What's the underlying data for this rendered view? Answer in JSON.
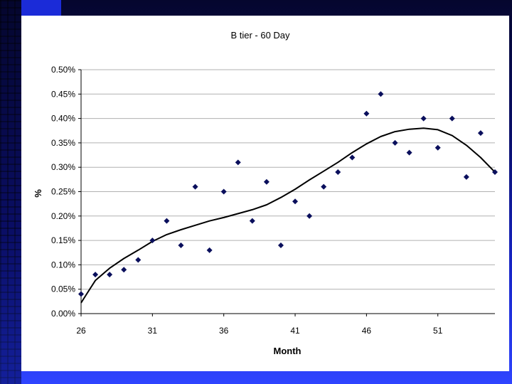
{
  "chart_data": {
    "type": "scatter",
    "title": "B tier - 60 Day",
    "xlabel": "Month",
    "ylabel": "%",
    "xlim": [
      26,
      55
    ],
    "ylim": [
      0,
      0.5
    ],
    "x_ticks": [
      26,
      31,
      36,
      41,
      46,
      51
    ],
    "x_tick_labels": [
      "26",
      "31",
      "36",
      "41",
      "46",
      "51"
    ],
    "y_ticks": [
      0,
      0.05,
      0.1,
      0.15,
      0.2,
      0.25,
      0.3,
      0.35,
      0.4,
      0.45,
      0.5
    ],
    "y_tick_labels": [
      "0.00%",
      "0.05%",
      "0.10%",
      "0.15%",
      "0.20%",
      "0.25%",
      "0.30%",
      "0.35%",
      "0.40%",
      "0.45%",
      "0.50%"
    ],
    "grid": "horizontal",
    "series": [
      {
        "type": "scatter",
        "marker": "diamond",
        "color": "#0a0f5c",
        "x": [
          26,
          27,
          28,
          29,
          30,
          31,
          32,
          33,
          34,
          35,
          36,
          37,
          38,
          39,
          40,
          41,
          42,
          43,
          44,
          45,
          46,
          47,
          48,
          49,
          50,
          51,
          52,
          53,
          54,
          55
        ],
        "y": [
          0.04,
          0.08,
          0.08,
          0.09,
          0.11,
          0.15,
          0.19,
          0.14,
          0.26,
          0.13,
          0.25,
          0.31,
          0.19,
          0.27,
          0.14,
          0.23,
          0.2,
          0.26,
          0.29,
          0.32,
          0.41,
          0.45,
          0.35,
          0.33,
          0.4,
          0.34,
          0.4,
          0.28,
          0.37,
          0.29
        ]
      },
      {
        "type": "line",
        "color": "#000000",
        "x": [
          26,
          26.5,
          27,
          28,
          29,
          30,
          31,
          32,
          33,
          34,
          35,
          36,
          37,
          38,
          39,
          40,
          41,
          42,
          43,
          44,
          45,
          46,
          47,
          48,
          49,
          50,
          51,
          52,
          53,
          54,
          55
        ],
        "y": [
          0.022,
          0.045,
          0.068,
          0.093,
          0.113,
          0.13,
          0.148,
          0.162,
          0.172,
          0.181,
          0.19,
          0.197,
          0.205,
          0.213,
          0.223,
          0.238,
          0.255,
          0.274,
          0.292,
          0.31,
          0.33,
          0.348,
          0.363,
          0.373,
          0.378,
          0.38,
          0.377,
          0.365,
          0.345,
          0.32,
          0.29
        ]
      }
    ]
  }
}
